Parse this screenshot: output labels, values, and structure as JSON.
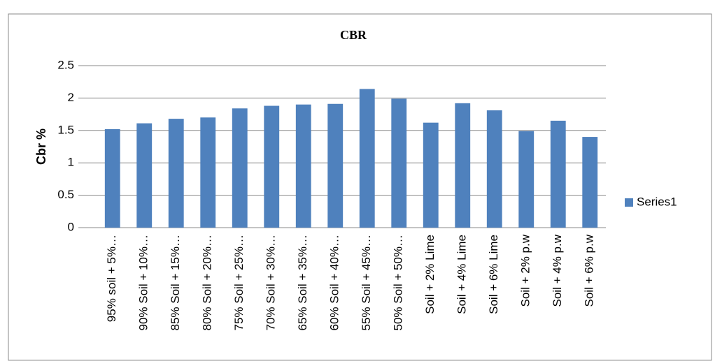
{
  "chart_data": {
    "type": "bar",
    "title": "CBR",
    "y_label": "Cbr %",
    "categories": [
      "95% soil + 5%…",
      "90% Soil + 10%…",
      "85% Soil + 15%…",
      "80% Soil + 20%…",
      "75% Soil + 25%…",
      "70% Soil + 30%…",
      "65% Soil + 35%…",
      "60% Soil + 40%…",
      "55% Soil + 45%…",
      "50% Soil + 50%…",
      "Soil + 2% Lime",
      "Soil + 4% Lime",
      "Soil + 6% Lime",
      "Soil + 2% p.w",
      "Soil + 4% p.w",
      "Soil + 6% p.w"
    ],
    "series": [
      {
        "name": "Series1",
        "color": "#4f81bd",
        "values": [
          1.52,
          1.61,
          1.68,
          1.7,
          1.84,
          1.88,
          1.9,
          1.91,
          2.14,
          1.99,
          1.62,
          1.92,
          1.81,
          1.49,
          1.65,
          1.4
        ]
      }
    ],
    "ylim": [
      0,
      2.5
    ],
    "yticks": [
      0,
      0.5,
      1,
      1.5,
      2,
      2.5
    ],
    "grid": true,
    "legend": "right"
  }
}
